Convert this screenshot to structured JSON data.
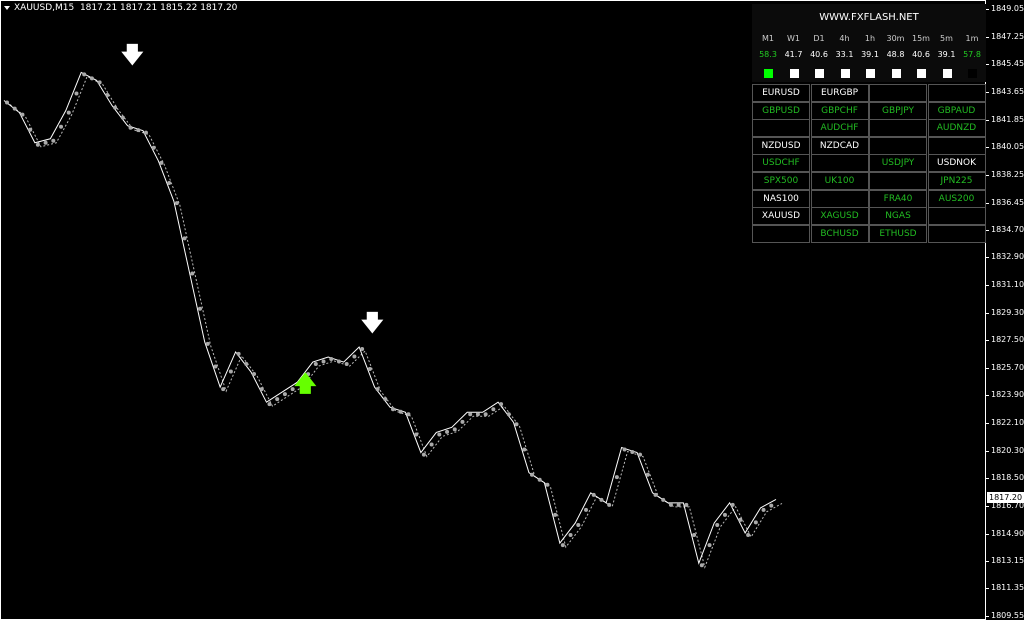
{
  "header": {
    "symbol": "XAUUSD,M15",
    "ohlc": "1817.21 1817.21 1815.22 1817.20"
  },
  "axis": {
    "ticks": [
      "1849.05",
      "1847.25",
      "1845.45",
      "1843.65",
      "1841.85",
      "1840.05",
      "1838.25",
      "1836.45",
      "1834.70",
      "1832.90",
      "1831.10",
      "1829.30",
      "1827.50",
      "1825.70",
      "1823.90",
      "1822.10",
      "1820.30",
      "1818.50",
      "1816.70",
      "1814.90",
      "1813.15",
      "1811.35",
      "1809.55"
    ],
    "current_price": "1817.20",
    "range": [
      1809.55,
      1849.05
    ]
  },
  "price_series": [
    1843.16,
    1842.37,
    1840.41,
    1840.67,
    1842.5,
    1844.99,
    1844.47,
    1842.83,
    1841.52,
    1841.2,
    1839.23,
    1836.61,
    1832.03,
    1827.45,
    1824.51,
    1826.8,
    1825.49,
    1823.53,
    1824.18,
    1824.83,
    1826.14,
    1826.47,
    1826.14,
    1827.12,
    1824.51,
    1823.2,
    1822.87,
    1820.25,
    1821.56,
    1821.89,
    1822.87,
    1822.87,
    1823.53,
    1822.22,
    1818.94,
    1818.29,
    1814.36,
    1815.67,
    1817.63,
    1816.98,
    1820.58,
    1820.25,
    1817.63,
    1816.98,
    1816.98,
    1813.05,
    1815.67,
    1816.98,
    1815.02,
    1816.65,
    1817.2
  ],
  "signals": [
    {
      "type": "sell",
      "color": "#ffffff",
      "icon": "arrow-down-icon"
    },
    {
      "type": "buy",
      "color": "#66ff00",
      "icon": "arrow-up-icon"
    },
    {
      "type": "sell",
      "color": "#ffffff",
      "icon": "arrow-down-icon"
    }
  ],
  "panel": {
    "title": "WWW.FXFLASH.NET",
    "timeframes": [
      {
        "label": "M1",
        "value": "58.3",
        "color": "#22cc22",
        "box": "#00ff00"
      },
      {
        "label": "W1",
        "value": "41.7",
        "color": "#ffffff",
        "box": "#ffffff"
      },
      {
        "label": "D1",
        "value": "40.6",
        "color": "#ffffff",
        "box": "#ffffff"
      },
      {
        "label": "4h",
        "value": "33.1",
        "color": "#ffffff",
        "box": "#ffffff"
      },
      {
        "label": "1h",
        "value": "39.1",
        "color": "#ffffff",
        "box": "#ffffff"
      },
      {
        "label": "30m",
        "value": "48.8",
        "color": "#ffffff",
        "box": "#ffffff"
      },
      {
        "label": "15m",
        "value": "40.6",
        "color": "#ffffff",
        "box": "#ffffff"
      },
      {
        "label": "5m",
        "value": "39.1",
        "color": "#ffffff",
        "box": "#ffffff"
      },
      {
        "label": "1m",
        "value": "57.8",
        "color": "#22cc22",
        "box": "#000000"
      }
    ],
    "symbols": [
      [
        {
          "t": "EURUSD",
          "c": "#ffffff"
        },
        {
          "t": "EURGBP",
          "c": "#ffffff"
        },
        {
          "t": "",
          "c": ""
        },
        {
          "t": "",
          "c": ""
        }
      ],
      [
        {
          "t": "GBPUSD",
          "c": "#22bb22"
        },
        {
          "t": "GBPCHF",
          "c": "#22bb22"
        },
        {
          "t": "GBPJPY",
          "c": "#22bb22"
        },
        {
          "t": "GBPAUD",
          "c": "#22bb22"
        }
      ],
      [
        {
          "t": "",
          "c": ""
        },
        {
          "t": "AUDCHF",
          "c": "#22bb22"
        },
        {
          "t": "",
          "c": ""
        },
        {
          "t": "AUDNZD",
          "c": "#22bb22"
        }
      ],
      [
        {
          "t": "NZDUSD",
          "c": "#ffffff"
        },
        {
          "t": "NZDCAD",
          "c": "#ffffff"
        },
        {
          "t": "",
          "c": ""
        },
        {
          "t": "",
          "c": ""
        }
      ],
      [
        {
          "t": "USDCHF",
          "c": "#22bb22"
        },
        {
          "t": "",
          "c": ""
        },
        {
          "t": "USDJPY",
          "c": "#22bb22"
        },
        {
          "t": "USDNOK",
          "c": "#ffffff"
        }
      ],
      [
        {
          "t": "SPX500",
          "c": "#22bb22"
        },
        {
          "t": "UK100",
          "c": "#22bb22"
        },
        {
          "t": "",
          "c": ""
        },
        {
          "t": "JPN225",
          "c": "#22bb22"
        }
      ],
      [
        {
          "t": "NAS100",
          "c": "#ffffff"
        },
        {
          "t": "",
          "c": ""
        },
        {
          "t": "FRA40",
          "c": "#22bb22"
        },
        {
          "t": "AUS200",
          "c": "#22bb22"
        }
      ],
      [
        {
          "t": "XAUUSD",
          "c": "#ffffff"
        },
        {
          "t": "XAGUSD",
          "c": "#22bb22"
        },
        {
          "t": "NGAS",
          "c": "#22bb22"
        },
        {
          "t": "",
          "c": ""
        }
      ],
      [
        {
          "t": "",
          "c": ""
        },
        {
          "t": "BCHUSD",
          "c": "#22bb22"
        },
        {
          "t": "ETHUSD",
          "c": "#22bb22"
        },
        {
          "t": "",
          "c": ""
        }
      ]
    ]
  }
}
